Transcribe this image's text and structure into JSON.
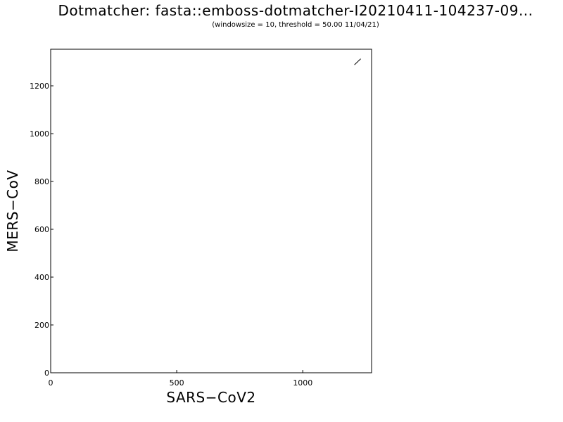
{
  "chart_data": {
    "type": "scatter",
    "title": "Dotmatcher: fasta::emboss-dotmatcher-I20210411-104237-09...",
    "subtitle": "(windowsize = 10, threshold = 50.00  11/04/21)",
    "xlabel": "SARS−CoV2",
    "ylabel": "MERS−CoV",
    "xlim": [
      0,
      1273
    ],
    "ylim": [
      0,
      1353
    ],
    "x_ticks": [
      0,
      500,
      1000
    ],
    "y_ticks": [
      0,
      200,
      400,
      600,
      800,
      1000,
      1200
    ],
    "x_tick_labels": [
      "0",
      "500",
      "1000"
    ],
    "y_tick_labels": [
      "0",
      "200",
      "400",
      "600",
      "800",
      "1000",
      "1200"
    ],
    "grid": false,
    "legend": "none",
    "line_color": "#000000",
    "series": [
      {
        "segments": [
          {
            "x": [
              1205,
              1230
            ],
            "y": [
              1288,
              1313
            ]
          }
        ]
      }
    ]
  }
}
